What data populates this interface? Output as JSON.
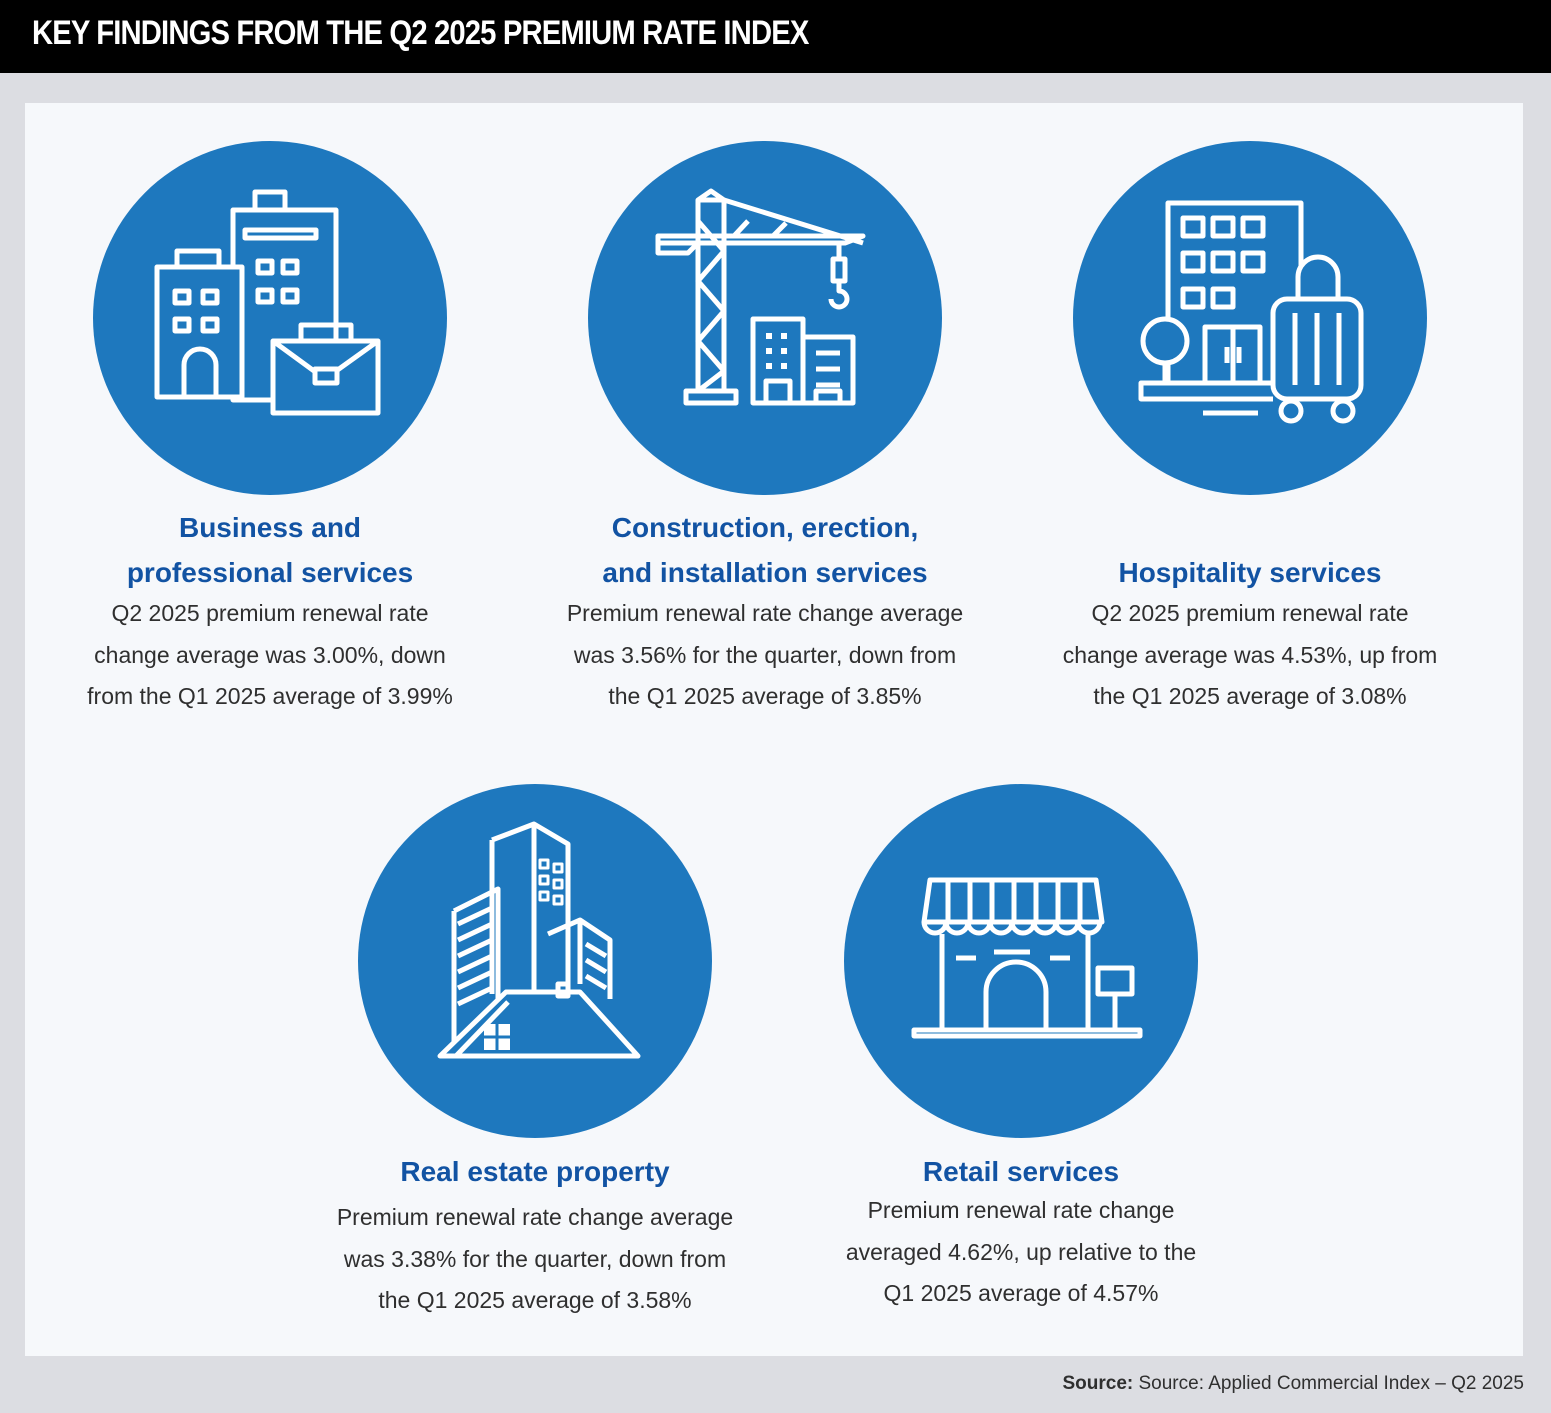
{
  "title": "KEY FINDINGS FROM THE Q2 2025 PREMIUM RATE INDEX",
  "accent_color": "#1e78be",
  "heading_color": "#1253a3",
  "cards": [
    {
      "icon": "office-buildings-briefcase-icon",
      "heading": [
        "Business and",
        "professional services"
      ],
      "description": [
        "Q2 2025 premium renewal rate",
        "change average was 3.00%, down",
        "from the Q1 2025 average of 3.99%"
      ]
    },
    {
      "icon": "construction-crane-icon",
      "heading": [
        "Construction, erection,",
        "and installation services"
      ],
      "description": [
        "Premium renewal rate change average",
        "was 3.56% for the quarter, down from",
        "the Q1 2025 average of 3.85%"
      ]
    },
    {
      "icon": "hotel-luggage-icon",
      "heading": [
        "Hospitality services"
      ],
      "description": [
        "Q2 2025 premium renewal rate",
        "change average was 4.53%, up from",
        "the Q1 2025 average of 3.08%"
      ]
    },
    {
      "icon": "real-estate-buildings-icon",
      "heading": [
        "Real estate property"
      ],
      "description": [
        "Premium renewal rate change average",
        "was 3.38% for the quarter, down from",
        "the Q1 2025 average of 3.58%"
      ]
    },
    {
      "icon": "storefront-icon",
      "heading": [
        "Retail services"
      ],
      "description": [
        "Premium renewal rate change",
        "averaged 4.62%, up relative to the",
        "Q1 2025 average of 4.57%"
      ]
    }
  ],
  "source": {
    "label": "Source:",
    "text": "Source: Applied Commercial Index – Q2 2025"
  }
}
